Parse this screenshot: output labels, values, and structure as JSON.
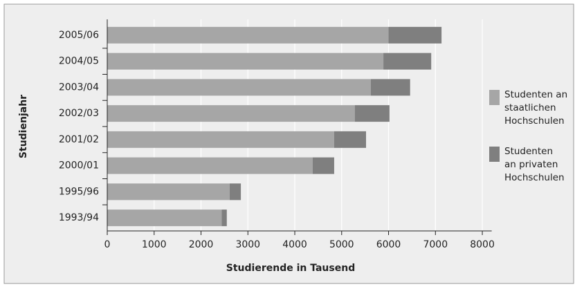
{
  "chart_data": {
    "type": "stacked_barh",
    "xlabel": "Studierende in Tausend",
    "ylabel": "Studienjahr",
    "categories": [
      "2005/06",
      "2004/05",
      "2003/04",
      "2002/03",
      "2001/02",
      "2000/01",
      "1995/96",
      "1993/94"
    ],
    "series": [
      {
        "name": "Studenten an\nstaatlichen\nHochschulen",
        "color": "#a6a6a6",
        "values": [
          6000,
          5890,
          5620,
          5280,
          4840,
          4380,
          2610,
          2440
        ]
      },
      {
        "name": "Studenten\nan privaten\nHochschulen",
        "color": "#7f7f7f",
        "values": [
          1130,
          1020,
          840,
          740,
          680,
          460,
          240,
          110
        ]
      }
    ],
    "xlim": [
      0,
      8200
    ],
    "xticks": [
      0,
      1000,
      2000,
      3000,
      4000,
      5000,
      6000,
      7000,
      8000
    ],
    "grid": true,
    "legend": "right"
  }
}
